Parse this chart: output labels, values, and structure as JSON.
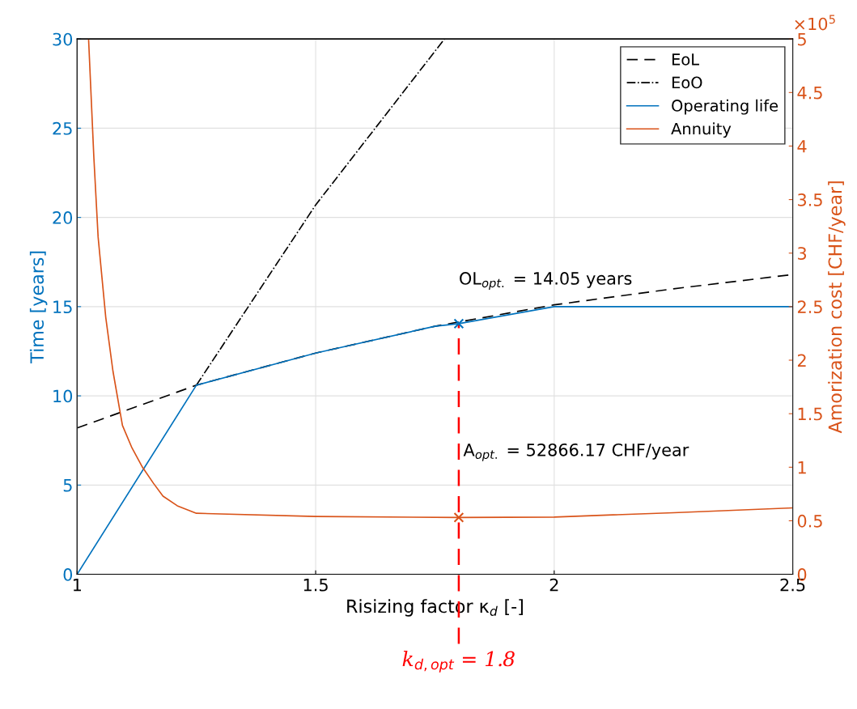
{
  "chart_data": {
    "type": "line",
    "xlabel": "Risizing factor κ$_{d}$ [-]",
    "ylabel": "Time [years]",
    "y2label": "Amorization cost [CHF/year]",
    "xlim": [
      1,
      2.5
    ],
    "xticks": [
      1,
      1.5,
      2,
      2.5
    ],
    "ylim": [
      0,
      30
    ],
    "yticks": [
      0,
      5,
      10,
      15,
      20,
      25,
      30
    ],
    "y2lim": [
      0,
      5
    ],
    "y2ticks": [
      0,
      0.5,
      1,
      1.5,
      2,
      2.5,
      3,
      3.5,
      4,
      4.5,
      5
    ],
    "grid": true,
    "legend": "top right",
    "series": [
      {
        "name": "EoL",
        "color": "#000000",
        "line_style": "dashed",
        "x": [
          1,
          1.25,
          1.5,
          1.75,
          2,
          2.25,
          2.5
        ],
        "values": [
          8.2,
          10.6,
          12.4,
          13.9,
          15.1,
          16.0,
          16.8
        ]
      },
      {
        "name": "EoO",
        "color": "#000000",
        "line_style": "dashdot",
        "x": [
          1.25,
          1.5,
          1.77
        ],
        "values": [
          10.6,
          20.7,
          30
        ]
      },
      {
        "name": "Operating life",
        "color": "#0072bd",
        "line_style": "solid",
        "x": [
          1,
          1.25,
          1.5,
          1.75,
          1.8,
          2,
          2.5
        ],
        "values": [
          0,
          10.6,
          12.4,
          13.9,
          14.05,
          15,
          15
        ]
      },
      {
        "name": "Annuity",
        "color": "#d95319",
        "line_style": "solid",
        "axis": "y2",
        "x": [
          1.024,
          1.035,
          1.044,
          1.06,
          1.075,
          1.095,
          1.115,
          1.137,
          1.16,
          1.18,
          1.21,
          1.25,
          1.5,
          1.8,
          2,
          2.25,
          2.5
        ],
        "values": [
          5,
          3.9,
          3.15,
          2.4,
          1.9,
          1.39,
          1.18,
          1.0,
          0.85,
          0.73,
          0.64,
          0.57,
          0.54,
          0.53,
          0.535,
          0.575,
          0.62
        ]
      },
      {
        "type": "scatter",
        "marker": "cross",
        "color": "#0072bd",
        "x": [
          1.8
        ],
        "values": [
          14.05
        ]
      },
      {
        "type": "scatter",
        "marker": "cross",
        "color": "#d95319",
        "axis": "y2",
        "x": [
          1.8
        ],
        "values": [
          0.53
        ]
      }
    ],
    "ref_lines": [
      {
        "axis": "x",
        "value": 1.8,
        "label": "k$_{d,opt}$ = 1.8",
        "color": "#ff0000",
        "line_style": "dashed"
      }
    ],
    "annotations": [
      {
        "text": "OL$_{opt.}$ = 14.05 years",
        "x": 1.8,
        "y": 14.05
      },
      "A$_{opt.}$ = 52866.17 CHF/year",
      "×10$^{5}$"
    ]
  }
}
